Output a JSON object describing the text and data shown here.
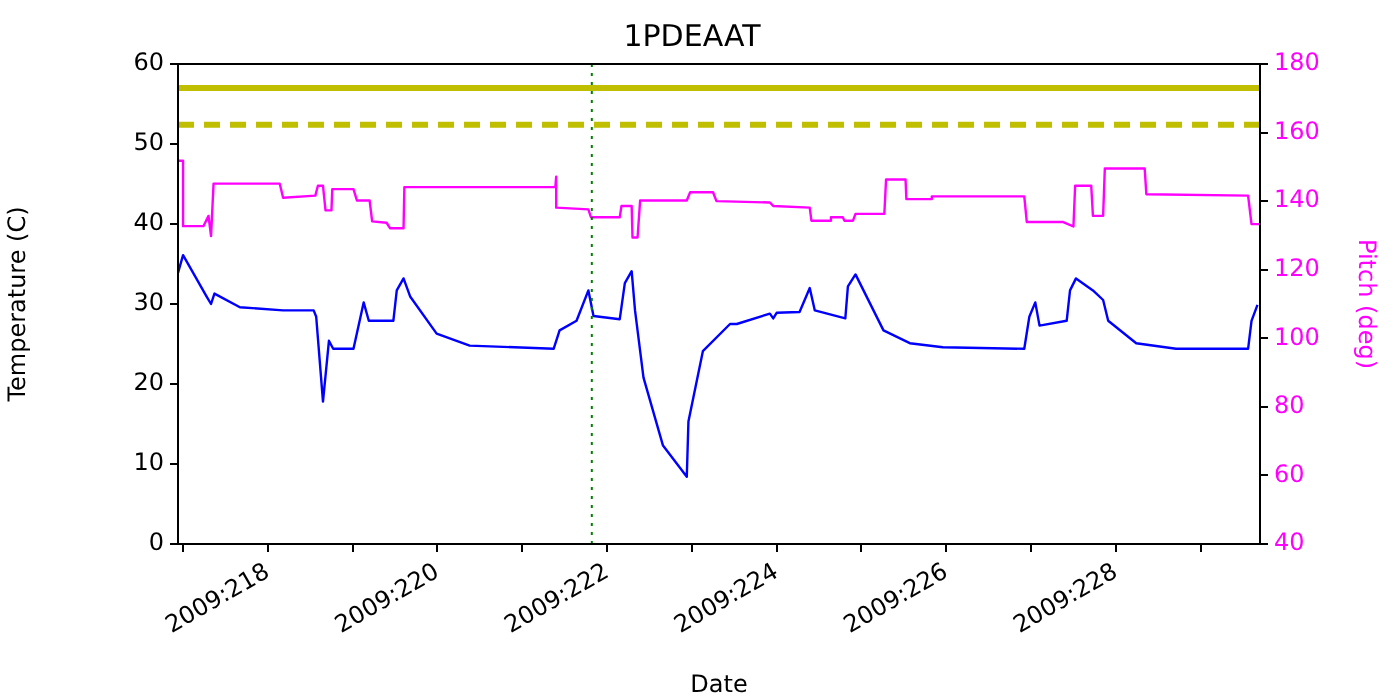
{
  "chart_data": {
    "type": "line",
    "title": "1PDEAAT",
    "xlabel": "Date",
    "ylabel": "Temperature (C)",
    "y2label": "Pitch (deg)",
    "xlim": [
      "2009-08-04T22:34",
      "2009-08-17T16:48"
    ],
    "xticks": [
      {
        "value": "2009-08-05",
        "label": null
      },
      {
        "value": "2009-08-06",
        "label": "2009:218"
      },
      {
        "value": "2009-08-07",
        "label": null
      },
      {
        "value": "2009-08-08",
        "label": "2009:220"
      },
      {
        "value": "2009-08-09",
        "label": null
      },
      {
        "value": "2009-08-10",
        "label": "2009:222"
      },
      {
        "value": "2009-08-11",
        "label": null
      },
      {
        "value": "2009-08-12",
        "label": "2009:224"
      },
      {
        "value": "2009-08-13",
        "label": null
      },
      {
        "value": "2009-08-14",
        "label": "2009:226"
      },
      {
        "value": "2009-08-15",
        "label": null
      },
      {
        "value": "2009-08-16",
        "label": "2009:228"
      },
      {
        "value": "2009-08-17",
        "label": null
      }
    ],
    "ylim": [
      0,
      60
    ],
    "yticks": [
      0,
      10,
      20,
      30,
      40,
      50,
      60
    ],
    "y2lim": [
      40,
      180
    ],
    "y2ticks": [
      40,
      60,
      80,
      100,
      120,
      140,
      160,
      180
    ],
    "grid": false,
    "legend": false,
    "series": [
      {
        "color": "#0000ff",
        "x": [
          "2009-08-04T22:34",
          "2009-08-05T00:00",
          "2009-08-05T06:43",
          "2009-08-05T07:55",
          "2009-08-05T08:53",
          "2009-08-05T16:05",
          "2009-08-06T04:19",
          "2009-08-06T12:58",
          "2009-08-06T13:41",
          "2009-08-06T15:36",
          "2009-08-06T17:17",
          "2009-08-06T18:29",
          "2009-08-07T00:14",
          "2009-08-07T03:07",
          "2009-08-07T04:34",
          "2009-08-07T11:31",
          "2009-08-07T12:29",
          "2009-08-07T14:24",
          "2009-08-07T16:19",
          "2009-08-07T23:46",
          "2009-08-08T09:07",
          "2009-08-09T08:53",
          "2009-08-09T10:34",
          "2009-08-09T15:22",
          "2009-08-09T18:43",
          "2009-08-09T20:10",
          "2009-08-10T03:36",
          "2009-08-10T05:02",
          "2009-08-10T06:58",
          "2009-08-10T07:55",
          "2009-08-10T10:19",
          "2009-08-10T15:50",
          "2009-08-10T22:34",
          "2009-08-10T23:02",
          "2009-08-11T03:07",
          "2009-08-11T10:48",
          "2009-08-11T12:43",
          "2009-08-11T22:05",
          "2009-08-11T23:02",
          "2009-08-12T00:00",
          "2009-08-12T06:29",
          "2009-08-12T09:22",
          "2009-08-12T10:48",
          "2009-08-12T19:26",
          "2009-08-12T20:10",
          "2009-08-12T22:19",
          "2009-08-13T06:14",
          "2009-08-13T13:41",
          "2009-08-13T23:02",
          "2009-08-14T22:05",
          "2009-08-14T23:31",
          "2009-08-15T01:12",
          "2009-08-15T02:24",
          "2009-08-15T10:05",
          "2009-08-15T11:02",
          "2009-08-15T12:43",
          "2009-08-15T17:31",
          "2009-08-15T20:24",
          "2009-08-15T21:50",
          "2009-08-16T05:46",
          "2009-08-16T17:02",
          "2009-08-17T13:26",
          "2009-08-17T14:24",
          "2009-08-17T16:05"
        ],
        "values": [
          33.9,
          36.1,
          30.9,
          30.0,
          31.3,
          29.6,
          29.2,
          29.2,
          28.4,
          17.8,
          25.4,
          24.4,
          24.4,
          30.2,
          27.9,
          27.9,
          31.7,
          33.2,
          30.9,
          26.3,
          24.8,
          24.4,
          26.7,
          27.9,
          31.7,
          28.5,
          28.1,
          32.6,
          34.1,
          29.2,
          20.8,
          12.3,
          8.4,
          15.3,
          24.1,
          27.5,
          27.5,
          28.8,
          28.2,
          28.9,
          29.0,
          32.0,
          29.2,
          28.2,
          32.2,
          33.7,
          26.7,
          25.1,
          24.6,
          24.4,
          28.4,
          30.2,
          27.3,
          27.9,
          31.7,
          33.2,
          31.7,
          30.5,
          27.9,
          25.1,
          24.4,
          24.4,
          27.9,
          29.9
        ]
      },
      {
        "color": "#ff00ff",
        "axis": "y2",
        "x": [
          "2009-08-04T22:34",
          "2009-08-05T00:00",
          "2009-08-05T00:00",
          "2009-08-05T05:46",
          "2009-08-05T07:12",
          "2009-08-05T07:55",
          "2009-08-05T08:38",
          "2009-08-06T03:22",
          "2009-08-06T04:19",
          "2009-08-06T13:26",
          "2009-08-06T14:10",
          "2009-08-06T15:36",
          "2009-08-06T16:19",
          "2009-08-06T18:00",
          "2009-08-06T18:14",
          "2009-08-07T00:14",
          "2009-08-07T01:12",
          "2009-08-07T04:48",
          "2009-08-07T05:31",
          "2009-08-07T09:36",
          "2009-08-07T10:34",
          "2009-08-07T14:24",
          "2009-08-07T14:38",
          "2009-08-09T09:22",
          "2009-08-09T09:36",
          "2009-08-09T09:36",
          "2009-08-09T18:43",
          "2009-08-09T19:26",
          "2009-08-10T03:36",
          "2009-08-10T04:05",
          "2009-08-10T06:58",
          "2009-08-10T07:12",
          "2009-08-10T08:38",
          "2009-08-10T09:22",
          "2009-08-10T22:34",
          "2009-08-10T23:31",
          "2009-08-11T06:00",
          "2009-08-11T06:58",
          "2009-08-11T22:05",
          "2009-08-11T23:02",
          "2009-08-12T09:22",
          "2009-08-12T09:50",
          "2009-08-12T15:07",
          "2009-08-12T15:22",
          "2009-08-12T18:43",
          "2009-08-12T19:12",
          "2009-08-12T21:36",
          "2009-08-12T22:19",
          "2009-08-13T06:29",
          "2009-08-13T06:58",
          "2009-08-13T12:29",
          "2009-08-13T12:43",
          "2009-08-13T19:26",
          "2009-08-13T19:55",
          "2009-08-14T22:05",
          "2009-08-14T22:48",
          "2009-08-15T09:07",
          "2009-08-15T12:00",
          "2009-08-15T12:29",
          "2009-08-15T17:02",
          "2009-08-15T17:31",
          "2009-08-15T20:24",
          "2009-08-15T20:53",
          "2009-08-16T08:10",
          "2009-08-16T08:38",
          "2009-08-17T13:26",
          "2009-08-17T14:24",
          "2009-08-17T16:48"
        ],
        "values": [
          151.8,
          151.8,
          132.7,
          132.7,
          135.7,
          129.8,
          145.1,
          145.1,
          141.0,
          141.6,
          144.5,
          144.5,
          137.3,
          137.3,
          143.5,
          143.5,
          140.2,
          140.2,
          134.1,
          133.7,
          132.1,
          132.1,
          144.1,
          144.1,
          147.1,
          138.1,
          137.6,
          135.3,
          135.3,
          138.6,
          138.6,
          129.4,
          129.4,
          140.2,
          140.2,
          142.6,
          142.6,
          140.0,
          139.6,
          138.6,
          138.1,
          134.3,
          134.3,
          135.3,
          135.3,
          134.3,
          134.3,
          136.3,
          136.3,
          146.3,
          146.3,
          140.6,
          140.6,
          141.4,
          141.4,
          133.9,
          133.9,
          132.6,
          144.5,
          144.5,
          135.7,
          135.7,
          149.5,
          149.5,
          142.0,
          141.6,
          133.3,
          133.3
        ]
      }
    ],
    "ref_lines": [
      {
        "axis": "y",
        "value": 57,
        "color": "#bfbf00",
        "line_style": "solid"
      },
      {
        "axis": "y",
        "value": 52.4,
        "color": "#bfbf00",
        "line_style": "dashed"
      },
      {
        "axis": "x",
        "value": "2009-08-09T19:41",
        "color": "#008000",
        "line_style": "dotted"
      }
    ]
  }
}
